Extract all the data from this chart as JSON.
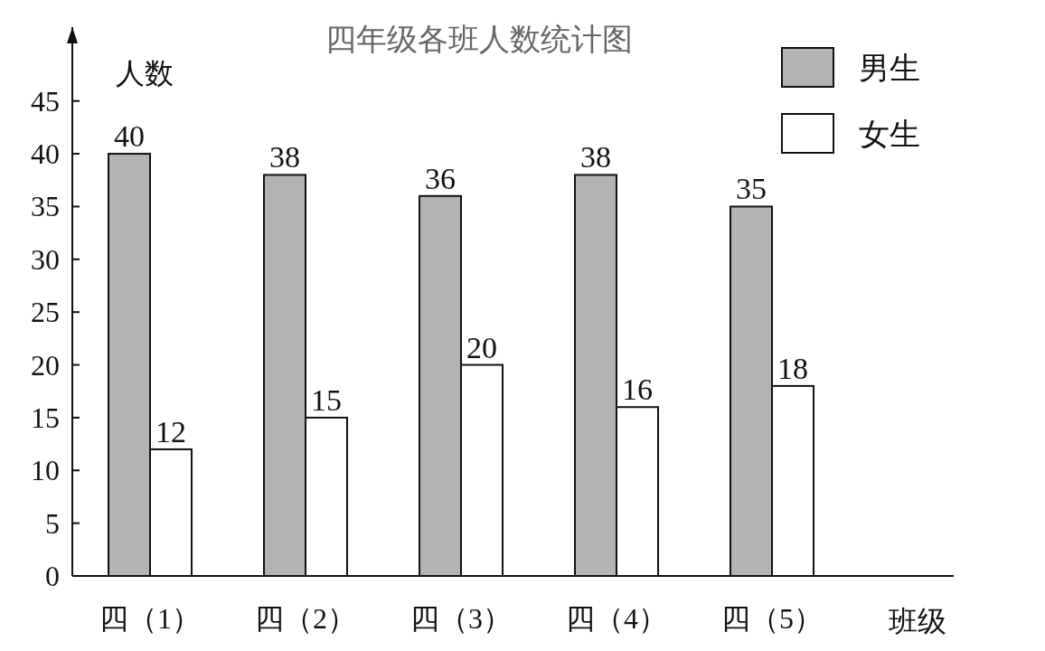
{
  "chart_data": {
    "type": "bar",
    "title": "四年级各班人数统计图",
    "xlabel": "班级",
    "ylabel": "人数",
    "categories": [
      "四（1）",
      "四（2）",
      "四（3）",
      "四（4）",
      "四（5）"
    ],
    "series": [
      {
        "name": "男生",
        "color": "#b3b3b3",
        "values": [
          40,
          38,
          36,
          38,
          35
        ]
      },
      {
        "name": "女生",
        "color": "#ffffff",
        "values": [
          12,
          15,
          20,
          16,
          18
        ]
      }
    ],
    "ylim": [
      0,
      52
    ],
    "yticks": [
      0,
      5,
      10,
      15,
      20,
      25,
      30,
      35,
      40,
      45
    ],
    "data_labels": true,
    "legend": "top right",
    "grid": false
  }
}
